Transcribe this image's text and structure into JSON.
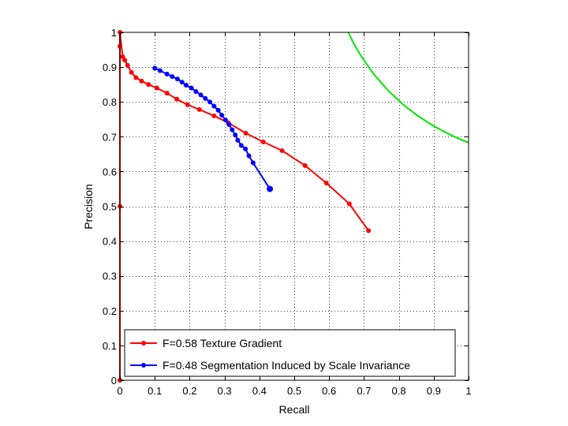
{
  "chart_data": {
    "type": "line",
    "xlabel": "Recall",
    "ylabel": "Precision",
    "xlim": [
      0,
      1
    ],
    "ylim": [
      0,
      1
    ],
    "grid": true,
    "legend_position": "bottom-left",
    "x_ticks": [
      "0",
      "0.1",
      "0.2",
      "0.3",
      "0.4",
      "0.5",
      "0.6",
      "0.7",
      "0.8",
      "0.9",
      "1"
    ],
    "y_ticks": [
      "0",
      "0.1",
      "0.2",
      "0.3",
      "0.4",
      "0.5",
      "0.6",
      "0.7",
      "0.8",
      "0.9",
      "1"
    ],
    "series": [
      {
        "name": "F=0.58 Texture Gradient",
        "color": "#ff0000",
        "marker": "dot",
        "x": [
          0.0,
          0.0,
          0.0,
          0.0,
          0.008,
          0.014,
          0.022,
          0.033,
          0.046,
          0.062,
          0.082,
          0.106,
          0.135,
          0.163,
          0.194,
          0.228,
          0.27,
          0.311,
          0.361,
          0.411,
          0.465,
          0.531,
          0.592,
          0.658,
          0.713
        ],
        "y": [
          0.0,
          0.5,
          0.96,
          1.0,
          0.93,
          0.92,
          0.905,
          0.885,
          0.87,
          0.86,
          0.85,
          0.84,
          0.825,
          0.808,
          0.792,
          0.778,
          0.76,
          0.74,
          0.71,
          0.685,
          0.66,
          0.617,
          0.567,
          0.507,
          0.43
        ]
      },
      {
        "name": "F=0.48 Segmentation Induced by Scale Invariance",
        "color": "#0000ff",
        "marker": "dot",
        "x": [
          0.1,
          0.115,
          0.135,
          0.15,
          0.165,
          0.178,
          0.19,
          0.205,
          0.218,
          0.232,
          0.245,
          0.258,
          0.27,
          0.282,
          0.292,
          0.303,
          0.313,
          0.322,
          0.331,
          0.338,
          0.348,
          0.36,
          0.37,
          0.382,
          0.43
        ],
        "y": [
          0.897,
          0.89,
          0.88,
          0.873,
          0.866,
          0.857,
          0.848,
          0.84,
          0.83,
          0.82,
          0.81,
          0.8,
          0.788,
          0.776,
          0.762,
          0.748,
          0.735,
          0.72,
          0.705,
          0.69,
          0.675,
          0.665,
          0.645,
          0.625,
          0.55
        ]
      },
      {
        "name": "",
        "color": "#00e600",
        "marker": "none",
        "x": [
          0.655,
          0.667,
          0.68,
          0.693,
          0.707,
          0.72,
          0.733,
          0.747,
          0.76,
          0.773,
          0.787,
          0.8,
          0.813,
          0.827,
          0.84,
          0.853,
          0.867,
          0.88,
          0.893,
          0.907,
          0.92,
          0.933,
          0.947,
          0.96,
          0.973,
          0.987,
          1.0
        ],
        "y": [
          1.0,
          0.975,
          0.951,
          0.93,
          0.91,
          0.891,
          0.874,
          0.858,
          0.843,
          0.829,
          0.816,
          0.804,
          0.792,
          0.781,
          0.771,
          0.761,
          0.752,
          0.743,
          0.735,
          0.727,
          0.72,
          0.713,
          0.706,
          0.7,
          0.694,
          0.688,
          0.683
        ]
      }
    ]
  }
}
